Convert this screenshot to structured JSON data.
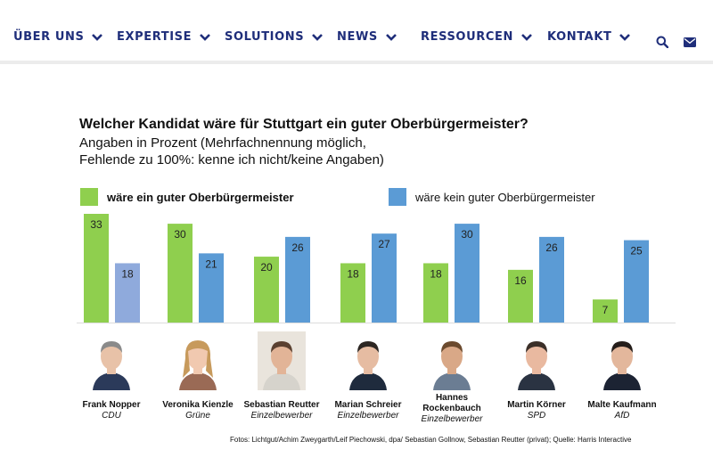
{
  "nav": {
    "items": [
      {
        "label": "ÜBER UNS"
      },
      {
        "label": "EXPERTISE"
      },
      {
        "label": "SOLUTIONS"
      },
      {
        "label": "NEWS"
      },
      {
        "label": "RESSOURCEN"
      },
      {
        "label": "KONTAKT"
      }
    ],
    "icons": [
      "search-icon",
      "mail-icon"
    ],
    "color": "#1f2e7a"
  },
  "chart_data": {
    "type": "bar",
    "title": "Welcher Kandidat wäre für Stuttgart ein guter Oberbürgermeister?",
    "subtitle": "Angaben in Prozent (Mehrfachnennung möglich,\nFehlende zu 100%: kenne ich nicht/keine Angaben)",
    "categories": [
      {
        "name": "Frank Nopper",
        "party": "CDU"
      },
      {
        "name": "Veronika Kienzle",
        "party": "Grüne"
      },
      {
        "name": "Sebastian Reutter",
        "party": "Einzelbewerber"
      },
      {
        "name": "Marian Schreier",
        "party": "Einzelbewerber"
      },
      {
        "name": "Hannes\nRockenbauch",
        "party": "Einzelbewerber"
      },
      {
        "name": "Martin Körner",
        "party": "SPD"
      },
      {
        "name": "Malte Kaufmann",
        "party": "AfD"
      }
    ],
    "series": [
      {
        "name": "wäre ein guter Oberbürgermeister",
        "color": "#8fcf4e",
        "values": [
          33,
          30,
          20,
          18,
          18,
          16,
          7
        ]
      },
      {
        "name": "wäre kein guter Oberbürgermeister",
        "color": "#5b9bd5",
        "values": [
          18,
          21,
          26,
          27,
          30,
          26,
          25
        ]
      }
    ],
    "highlight_color": "#8faadc",
    "ylim": [
      0,
      33
    ],
    "grid": false,
    "legend_position": "top"
  },
  "credit": "Fotos: Lichtgut/Achim Zweygarth/Leif Piechowski, dpa/ Sebastian Gollnow, Sebastian Reutter (privat);   Quelle: Harris Interactive"
}
